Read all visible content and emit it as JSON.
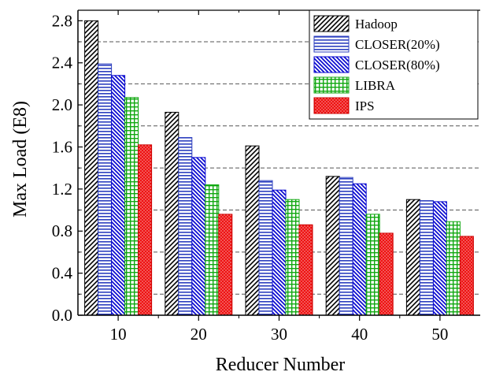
{
  "chart_data": {
    "type": "bar",
    "xlabel": "Reducer Number",
    "ylabel": "Max Load (E8)",
    "categories": [
      "10",
      "20",
      "30",
      "40",
      "50"
    ],
    "ylim": [
      0,
      2.9
    ],
    "yticks": [
      0.0,
      0.4,
      0.8,
      1.2,
      1.6,
      2.0,
      2.4,
      2.8
    ],
    "ytick_labels": [
      "0.0",
      "0.4",
      "0.8",
      "1.2",
      "1.6",
      "2.0",
      "2.4",
      "2.8"
    ],
    "grid": "dashed horizontal lines at 0.2, 0.6, 1.0, 1.4, 1.8, 2.2, 2.6",
    "gridlines": [
      0.2,
      0.6,
      1.0,
      1.4,
      1.8,
      2.2,
      2.6
    ],
    "legend_position": "top-right",
    "series": [
      {
        "name": "Hadoop",
        "values": [
          2.8,
          1.93,
          1.61,
          1.32,
          1.1
        ],
        "color": "#000000",
        "pattern": "diagonal-hatch"
      },
      {
        "name": "CLOSER(20%)",
        "values": [
          2.39,
          1.69,
          1.28,
          1.31,
          1.09
        ],
        "color": "#2c3fbf",
        "pattern": "horizontal-lines"
      },
      {
        "name": "CLOSER(80%)",
        "values": [
          2.28,
          1.5,
          1.19,
          1.25,
          1.08
        ],
        "color": "#0a0ad0",
        "pattern": "dense-diagonal-hatch"
      },
      {
        "name": "LIBRA",
        "values": [
          2.07,
          1.24,
          1.1,
          0.96,
          0.89
        ],
        "color": "#11a811",
        "pattern": "grid"
      },
      {
        "name": "IPS",
        "values": [
          1.62,
          0.96,
          0.86,
          0.78,
          0.75
        ],
        "color": "#ee1111",
        "pattern": "dots"
      }
    ]
  }
}
